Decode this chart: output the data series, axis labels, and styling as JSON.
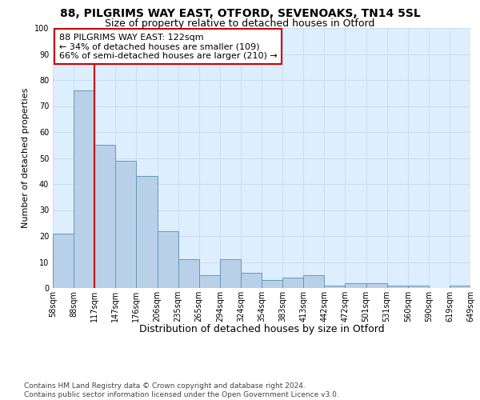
{
  "title1": "88, PILGRIMS WAY EAST, OTFORD, SEVENOAKS, TN14 5SL",
  "title2": "Size of property relative to detached houses in Otford",
  "xlabel": "Distribution of detached houses by size in Otford",
  "ylabel": "Number of detached properties",
  "bar_labels": [
    "58sqm",
    "88sqm",
    "117sqm",
    "147sqm",
    "176sqm",
    "206sqm",
    "235sqm",
    "265sqm",
    "294sqm",
    "324sqm",
    "354sqm",
    "383sqm",
    "413sqm",
    "442sqm",
    "472sqm",
    "501sqm",
    "531sqm",
    "560sqm",
    "590sqm",
    "619sqm",
    "649sqm"
  ],
  "bar_values": [
    21,
    76,
    55,
    49,
    43,
    22,
    11,
    5,
    11,
    6,
    3,
    4,
    5,
    1,
    2,
    2,
    1,
    1,
    0,
    1
  ],
  "bar_color": "#b8d0e8",
  "bar_edge_color": "#6699bb",
  "marker_line_color": "#cc0000",
  "annotation_text": "88 PILGRIMS WAY EAST: 122sqm\n← 34% of detached houses are smaller (109)\n66% of semi-detached houses are larger (210) →",
  "annotation_box_color": "#ffffff",
  "annotation_box_edge": "#cc0000",
  "grid_color": "#ccddee",
  "background_color": "#ddeeff",
  "footer_text": "Contains HM Land Registry data © Crown copyright and database right 2024.\nContains public sector information licensed under the Open Government Licence v3.0.",
  "ylim": [
    0,
    100
  ],
  "title1_fontsize": 10,
  "title2_fontsize": 9,
  "xlabel_fontsize": 9,
  "ylabel_fontsize": 8,
  "tick_fontsize": 7,
  "annotation_fontsize": 8,
  "footer_fontsize": 6.5
}
